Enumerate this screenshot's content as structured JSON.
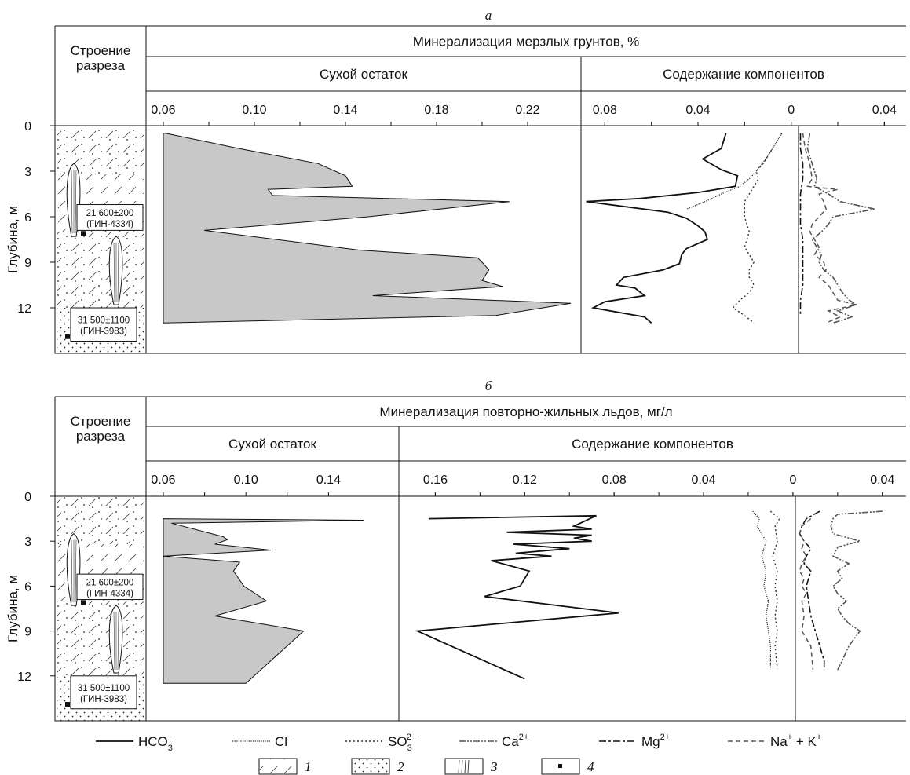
{
  "figure": {
    "legend_items": [
      {
        "key": "hco3",
        "text": "HCO3−",
        "base": "HCO",
        "sub": "3",
        "sup": "−"
      },
      {
        "key": "cl",
        "text": "Cl−",
        "base": "Cl",
        "sub": "",
        "sup": "−"
      },
      {
        "key": "so3",
        "text": "SO3 2−",
        "base": "SO",
        "sub": "3",
        "sup": "2−"
      },
      {
        "key": "ca",
        "text": "Ca2+",
        "base": "Ca",
        "sub": "",
        "sup": "2+"
      },
      {
        "key": "mg",
        "text": "Mg2+",
        "base": "Mg",
        "sub": "",
        "sup": "2+"
      },
      {
        "key": "nak",
        "text": "Na+ + K+",
        "base": "Na",
        "sub": "",
        "sup": "+",
        "rest": " + K",
        "restsup": "+"
      }
    ],
    "pattern_legend": [
      "1",
      "2",
      "3",
      "4"
    ]
  },
  "chart_data": [
    {
      "panel_label": "а",
      "type": "area",
      "header": "Минерализация мерзлых грунтов, %",
      "section_header": "Строение разреза",
      "depth_label": "Глубина, м",
      "depth_ticks": [
        "0",
        "3",
        "6",
        "9",
        "12"
      ],
      "ylim": [
        0,
        15
      ],
      "dates": [
        {
          "value": "21 600±200",
          "lab": "(ГИН-4334)"
        },
        {
          "value": "31 500±1100",
          "lab": "(ГИН-3983)"
        }
      ],
      "dry_residue": {
        "label": "Сухой остаток",
        "ticks": [
          "0.06",
          "0.10",
          "0.14",
          "0.18",
          "0.22"
        ],
        "xlim": [
          0.06,
          0.24
        ],
        "series": [
          {
            "name": "Сухой остаток",
            "depth": [
              0.5,
              0.5,
              1.5,
              2.5,
              3.3,
              4.0,
              4.2,
              4.6,
              5.0,
              6.0,
              6.9,
              8.2,
              8.7,
              9.0,
              9.5,
              10.2,
              10.6,
              11.2,
              11.7,
              12.5,
              13.0
            ],
            "values": [
              0.06,
              0.061,
              0.093,
              0.128,
              0.14,
              0.143,
              0.106,
              0.108,
              0.212,
              0.15,
              0.078,
              0.146,
              0.198,
              0.2,
              0.203,
              0.2,
              0.209,
              0.152,
              0.239,
              0.206,
              0.06
            ]
          }
        ]
      },
      "components": {
        "label": "Содержание компонентов",
        "ticks": [
          "0.08",
          "0.04",
          "0",
          "0.04"
        ],
        "xlim": [
          -0.1,
          0.05
        ],
        "series": [
          {
            "name": "HCO3−",
            "key": "hco3",
            "depth": [
              0.5,
              1.5,
              2.2,
              2.9,
              3.3,
              4.0,
              4.4,
              4.8,
              5.0,
              5.7,
              6.1,
              6.6,
              7.0,
              7.5,
              8.1,
              8.5,
              9.1,
              9.5,
              10.0,
              10.5,
              10.7,
              11.2,
              11.6,
              12.0,
              12.6,
              13.0
            ],
            "values": [
              -0.028,
              -0.03,
              -0.038,
              -0.03,
              -0.023,
              -0.024,
              -0.04,
              -0.065,
              -0.088,
              -0.053,
              -0.045,
              -0.04,
              -0.037,
              -0.036,
              -0.045,
              -0.047,
              -0.048,
              -0.055,
              -0.072,
              -0.075,
              -0.067,
              -0.063,
              -0.08,
              -0.085,
              -0.063,
              -0.06
            ]
          },
          {
            "name": "Cl−",
            "key": "cl",
            "depth": [
              0.5,
              1.0,
              2.0,
              3.0,
              3.5,
              4.0,
              4.5,
              5.0,
              5.5
            ],
            "values": [
              -0.004,
              -0.006,
              -0.01,
              -0.015,
              -0.018,
              -0.022,
              -0.03,
              -0.037,
              -0.045
            ]
          },
          {
            "name": "SO3 2−",
            "key": "so3",
            "depth": [
              0.5,
              1.5,
              2.5,
              3.0,
              3.5,
              4.0,
              4.5,
              5.0,
              6.0,
              7.0,
              8.0,
              8.5,
              9.0,
              9.5,
              10.0,
              10.5,
              11.0,
              11.5,
              12.0,
              12.5,
              13.0
            ],
            "values": [
              -0.004,
              -0.008,
              -0.012,
              -0.015,
              -0.014,
              -0.016,
              -0.018,
              -0.02,
              -0.02,
              -0.018,
              -0.02,
              -0.018,
              -0.016,
              -0.018,
              -0.018,
              -0.016,
              -0.018,
              -0.022,
              -0.025,
              -0.02,
              -0.016
            ]
          },
          {
            "name": "Ca2+",
            "key": "ca",
            "depth": [
              0.5,
              1.5,
              2.5,
              3.5,
              4.0,
              4.5,
              5.0,
              5.5,
              6.0,
              6.5,
              7.0,
              7.5,
              8.0,
              8.5,
              9.0,
              9.5,
              10.0,
              10.5,
              11.0,
              11.5,
              11.8,
              12.2,
              12.6,
              13.0
            ],
            "values": [
              0.008,
              0.007,
              0.009,
              0.011,
              0.01,
              0.016,
              0.021,
              0.036,
              0.018,
              0.016,
              0.013,
              0.009,
              0.011,
              0.013,
              0.012,
              0.014,
              0.018,
              0.02,
              0.022,
              0.025,
              0.028,
              0.02,
              0.026,
              0.018
            ]
          },
          {
            "name": "Mg2+",
            "key": "mg",
            "depth": [
              0.5,
              1.5,
              2.5,
              3.5,
              4.5,
              5.5,
              6.5,
              7.5,
              8.5,
              9.5,
              10.5,
              11.5,
              12.5
            ],
            "values": [
              0.004,
              0.004,
              0.005,
              0.005,
              0.004,
              0.004,
              0.004,
              0.005,
              0.005,
              0.005,
              0.005,
              0.004,
              0.004
            ]
          },
          {
            "name": "Na+ + K+",
            "key": "nak",
            "depth": [
              0.5,
              1.5,
              2.5,
              3.5,
              4.0,
              4.2,
              4.5,
              5.0,
              5.5,
              6.0,
              6.5,
              7.0,
              7.5,
              8.0,
              8.5,
              9.0,
              9.5,
              10.0,
              10.5,
              11.0,
              11.5,
              11.8,
              12.2,
              12.6,
              13.0
            ],
            "values": [
              0.005,
              0.006,
              0.008,
              0.009,
              0.007,
              0.02,
              0.012,
              0.014,
              0.015,
              0.012,
              0.009,
              0.008,
              0.01,
              0.012,
              0.01,
              0.014,
              0.015,
              0.012,
              0.016,
              0.018,
              0.02,
              0.028,
              0.016,
              0.021,
              0.015
            ]
          }
        ]
      }
    },
    {
      "panel_label": "б",
      "type": "area",
      "header": "Минерализация повторно-жильных льдов, мг/л",
      "section_header": "Строение разреза",
      "depth_label": "Глубина, м",
      "depth_ticks": [
        "0",
        "3",
        "6",
        "9",
        "12"
      ],
      "ylim": [
        0,
        15
      ],
      "dates": [
        {
          "value": "21 600±200",
          "lab": "(ГИН-4334)"
        },
        {
          "value": "31 500±1100",
          "lab": "(ГИН-3983)"
        }
      ],
      "dry_residue": {
        "label": "Сухой остаток",
        "ticks": [
          "0.06",
          "0.10",
          "0.14"
        ],
        "xlim": [
          0.06,
          0.16
        ],
        "series": [
          {
            "name": "Сухой остаток",
            "depth": [
              1.5,
              1.6,
              1.8,
              2.7,
              2.9,
              3.2,
              3.6,
              4.0,
              4.4,
              5.0,
              6.0,
              7.0,
              8.0,
              9.0,
              12.5,
              12.5
            ],
            "values": [
              0.06,
              0.157,
              0.064,
              0.089,
              0.091,
              0.085,
              0.112,
              0.06,
              0.097,
              0.094,
              0.099,
              0.11,
              0.085,
              0.128,
              0.1,
              0.06
            ]
          }
        ]
      },
      "components": {
        "label": "Содержание компонентов",
        "ticks": [
          "0.16",
          "0.12",
          "0.08",
          "0.04",
          "0",
          "0.04"
        ],
        "xlim": [
          -0.19,
          0.045
        ],
        "series": [
          {
            "name": "HCO3−",
            "key": "hco3",
            "depth": [
              1.5,
              1.3,
              2.0,
              2.2,
              2.4,
              2.6,
              2.8,
              3.0,
              3.2,
              3.5,
              3.8,
              4.0,
              4.3,
              5.0,
              6.0,
              6.7,
              7.8,
              9.0,
              12.2
            ],
            "values": [
              -0.163,
              -0.088,
              -0.098,
              -0.09,
              -0.128,
              -0.09,
              -0.098,
              -0.09,
              -0.125,
              -0.1,
              -0.124,
              -0.108,
              -0.135,
              -0.118,
              -0.122,
              -0.138,
              -0.078,
              -0.168,
              -0.12
            ]
          },
          {
            "name": "Cl−",
            "key": "cl",
            "depth": [
              1.0,
              1.5,
              2.0,
              3.0,
              4.0,
              5.0,
              6.0,
              7.0,
              8.0,
              9.0,
              10.0,
              11.5
            ],
            "values": [
              -0.018,
              -0.015,
              -0.016,
              -0.012,
              -0.014,
              -0.012,
              -0.013,
              -0.011,
              -0.012,
              -0.011,
              -0.01,
              -0.01
            ]
          },
          {
            "name": "SO3 2−",
            "key": "so3",
            "depth": [
              1.0,
              1.5,
              2.0,
              3.0,
              4.0,
              5.0,
              6.0,
              7.0,
              8.0,
              9.0,
              10.0,
              11.5
            ],
            "values": [
              -0.01,
              -0.006,
              -0.008,
              -0.007,
              -0.009,
              -0.007,
              -0.008,
              -0.007,
              -0.008,
              -0.007,
              -0.008,
              -0.007
            ]
          },
          {
            "name": "Ca2+",
            "key": "ca",
            "depth": [
              1.0,
              1.2,
              1.5,
              2.0,
              2.5,
              3.0,
              3.4,
              4.0,
              4.5,
              5.0,
              5.5,
              6.0,
              6.5,
              7.0,
              7.5,
              8.0,
              8.5,
              9.0,
              10.0,
              11.0,
              11.6
            ],
            "values": [
              0.04,
              0.02,
              0.018,
              0.017,
              0.018,
              0.03,
              0.02,
              0.018,
              0.025,
              0.02,
              0.022,
              0.018,
              0.02,
              0.024,
              0.02,
              0.022,
              0.025,
              0.03,
              0.025,
              0.022,
              0.02
            ]
          },
          {
            "name": "Mg2+",
            "key": "mg",
            "depth": [
              1.0,
              1.5,
              2.0,
              2.5,
              3.0,
              3.5,
              4.0,
              4.5,
              5.0,
              6.0,
              7.0,
              8.0,
              9.0,
              10.0,
              11.0,
              11.6
            ],
            "values": [
              0.012,
              0.006,
              0.004,
              0.003,
              0.005,
              0.008,
              0.006,
              0.005,
              0.008,
              0.006,
              0.007,
              0.008,
              0.01,
              0.012,
              0.014,
              0.014
            ]
          },
          {
            "name": "Na+ + K+",
            "key": "nak",
            "depth": [
              1.5,
              2.0,
              2.5,
              3.0,
              3.5,
              4.0,
              4.5,
              5.0,
              5.5,
              6.0,
              6.5,
              7.0,
              8.0,
              9.0,
              10.0,
              11.6
            ],
            "values": [
              0.008,
              0.004,
              0.003,
              0.005,
              0.004,
              0.006,
              0.004,
              0.003,
              0.005,
              0.004,
              0.006,
              0.004,
              0.005,
              0.004,
              0.008,
              0.009
            ]
          }
        ]
      }
    }
  ]
}
